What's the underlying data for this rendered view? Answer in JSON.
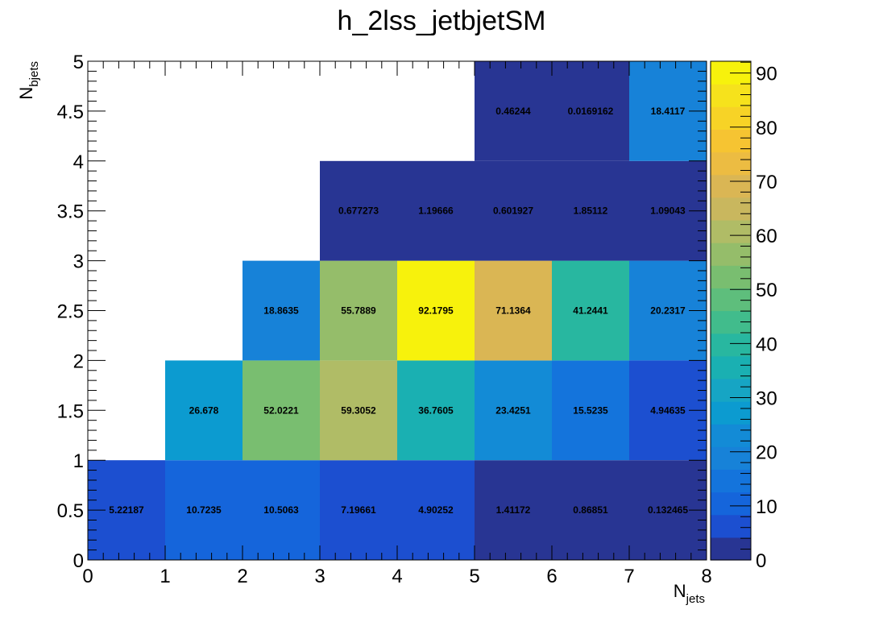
{
  "chart_data": {
    "type": "heatmap",
    "title": "h_2lss_jetbjetSM",
    "xlabel": {
      "main": "N",
      "sub": "jets"
    },
    "ylabel": {
      "main": "N",
      "sub": "bjets"
    },
    "xlim": [
      0,
      8
    ],
    "ylim": [
      0,
      5
    ],
    "x_bin_edges": [
      0,
      1,
      2,
      3,
      4,
      5,
      6,
      7,
      8
    ],
    "y_bin_edges": [
      0,
      1,
      2,
      3,
      4,
      5
    ],
    "x_ticks": [
      "0",
      "1",
      "2",
      "3",
      "4",
      "5",
      "6",
      "7",
      "8"
    ],
    "y_ticks": [
      "0",
      "0.5",
      "1",
      "1.5",
      "2",
      "2.5",
      "3",
      "3.5",
      "4",
      "4.5",
      "5"
    ],
    "colorbar": {
      "min": 0,
      "max": 92.1795,
      "ticks": [
        "0",
        "10",
        "20",
        "30",
        "40",
        "50",
        "60",
        "70",
        "80",
        "90"
      ]
    },
    "cells": [
      {
        "x": 0.5,
        "y": 0.5,
        "label": "5.22187",
        "value": 5.22187
      },
      {
        "x": 1.5,
        "y": 0.5,
        "label": "10.7235",
        "value": 10.7235
      },
      {
        "x": 2.5,
        "y": 0.5,
        "label": "10.5063",
        "value": 10.5063
      },
      {
        "x": 3.5,
        "y": 0.5,
        "label": "7.19661",
        "value": 7.19661
      },
      {
        "x": 4.5,
        "y": 0.5,
        "label": "4.90252",
        "value": 4.90252
      },
      {
        "x": 5.5,
        "y": 0.5,
        "label": "1.41172",
        "value": 1.41172
      },
      {
        "x": 6.5,
        "y": 0.5,
        "label": "0.86851",
        "value": 0.86851
      },
      {
        "x": 7.5,
        "y": 0.5,
        "label": "0.132465",
        "value": 0.132465
      },
      {
        "x": 1.5,
        "y": 1.5,
        "label": "26.678",
        "value": 26.678
      },
      {
        "x": 2.5,
        "y": 1.5,
        "label": "52.0221",
        "value": 52.0221
      },
      {
        "x": 3.5,
        "y": 1.5,
        "label": "59.3052",
        "value": 59.3052
      },
      {
        "x": 4.5,
        "y": 1.5,
        "label": "36.7605",
        "value": 36.7605
      },
      {
        "x": 5.5,
        "y": 1.5,
        "label": "23.4251",
        "value": 23.4251
      },
      {
        "x": 6.5,
        "y": 1.5,
        "label": "15.5235",
        "value": 15.5235
      },
      {
        "x": 7.5,
        "y": 1.5,
        "label": "4.94635",
        "value": 4.94635
      },
      {
        "x": 2.5,
        "y": 2.5,
        "label": "18.8635",
        "value": 18.8635
      },
      {
        "x": 3.5,
        "y": 2.5,
        "label": "55.7889",
        "value": 55.7889
      },
      {
        "x": 4.5,
        "y": 2.5,
        "label": "92.1795",
        "value": 92.1795
      },
      {
        "x": 5.5,
        "y": 2.5,
        "label": "71.1364",
        "value": 71.1364
      },
      {
        "x": 6.5,
        "y": 2.5,
        "label": "41.2441",
        "value": 41.2441
      },
      {
        "x": 7.5,
        "y": 2.5,
        "label": "20.2317",
        "value": 20.2317
      },
      {
        "x": 3.5,
        "y": 3.5,
        "label": "0.677273",
        "value": 0.677273
      },
      {
        "x": 4.5,
        "y": 3.5,
        "label": "1.19666",
        "value": 1.19666
      },
      {
        "x": 5.5,
        "y": 3.5,
        "label": "0.601927",
        "value": 0.601927
      },
      {
        "x": 6.5,
        "y": 3.5,
        "label": "1.85112",
        "value": 1.85112
      },
      {
        "x": 7.5,
        "y": 3.5,
        "label": "1.09043",
        "value": 1.09043
      },
      {
        "x": 5.5,
        "y": 4.5,
        "label": "0.46244",
        "value": 0.46244
      },
      {
        "x": 6.5,
        "y": 4.5,
        "label": "0.0169162",
        "value": 0.0169162
      },
      {
        "x": 7.5,
        "y": 4.5,
        "label": "18.4117",
        "value": 18.4117
      }
    ],
    "palette": [
      "#283593",
      "#1c4fd0",
      "#1565db",
      "#1474dc",
      "#1782d8",
      "#138bd6",
      "#0c9bd0",
      "#16a5c4",
      "#1ab0b2",
      "#28b7a0",
      "#41bc8c",
      "#5ebe7c",
      "#79be70",
      "#95bd6a",
      "#b0bc66",
      "#c9b75e",
      "#dab654",
      "#ecbc42",
      "#f6c432",
      "#f7d326",
      "#f6e21c",
      "#f7f20c"
    ]
  }
}
